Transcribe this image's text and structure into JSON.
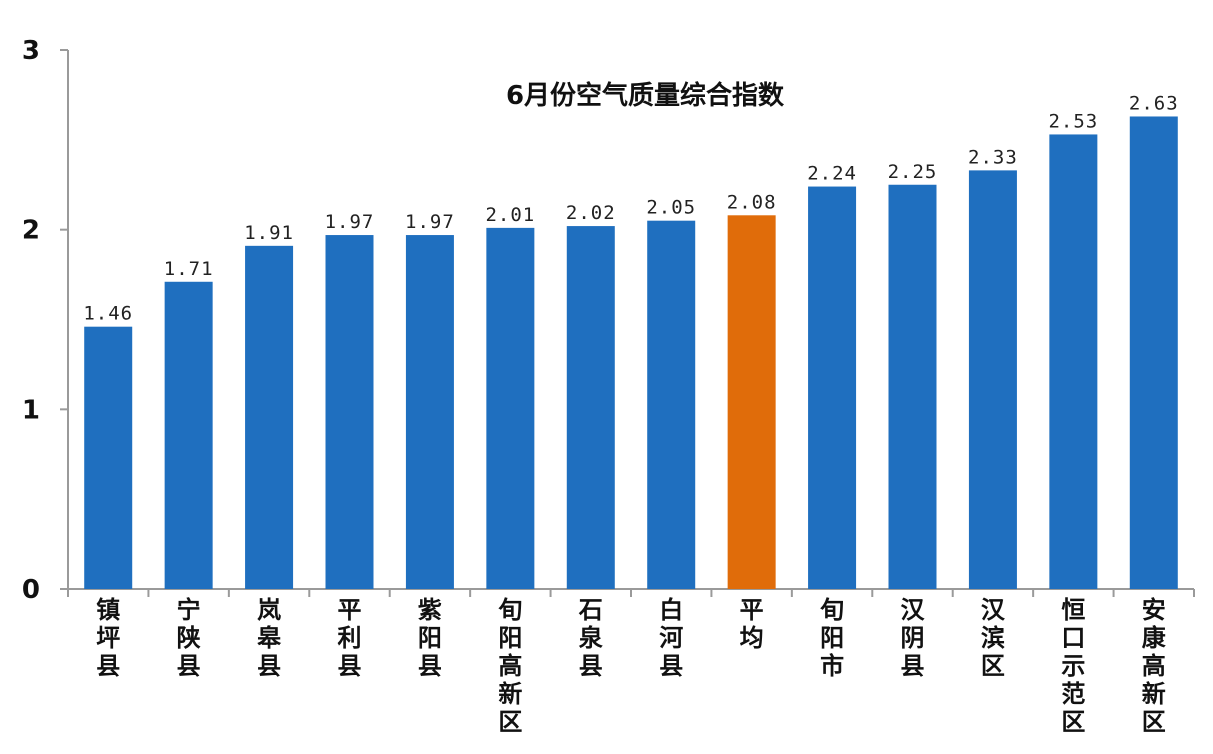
{
  "chart_data": {
    "type": "bar",
    "title": "6月份空气质量综合指数",
    "categories": [
      "镇坪县",
      "宁陕县",
      "岚皋县",
      "平利县",
      "紫阳县",
      "旬阳高新区",
      "石泉县",
      "白河县",
      "平均",
      "旬阳市",
      "汉阴县",
      "汉滨区",
      "恒口示范区",
      "安康高新区"
    ],
    "values": [
      1.46,
      1.71,
      1.91,
      1.97,
      1.97,
      2.01,
      2.02,
      2.05,
      2.08,
      2.24,
      2.25,
      2.33,
      2.53,
      2.63
    ],
    "value_labels": [
      "1.46",
      "1.71",
      "1.91",
      "1.97",
      "1.97",
      "2.01",
      "2.02",
      "2.05",
      "2.08",
      "2.24",
      "2.25",
      "2.33",
      "2.53",
      "2.63"
    ],
    "ylim": [
      0,
      3
    ],
    "yticks": [
      "0",
      "1",
      "2",
      "3"
    ],
    "xlabel": "",
    "ylabel": "",
    "grid": false,
    "legend": "none",
    "colors": {
      "bar": "#1f6fbf",
      "highlight": "#e06c0a",
      "highlight_category": "平均"
    }
  }
}
